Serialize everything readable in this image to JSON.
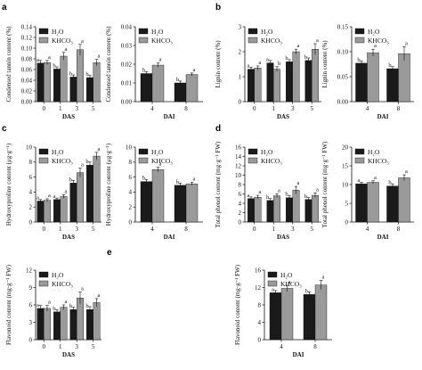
{
  "panel_letters": [
    "a",
    "b",
    "c",
    "d",
    "e"
  ],
  "colors": {
    "h2o": "#1a1a1a",
    "khco3": "#9a9a9a",
    "axis": "#111111"
  },
  "chart_data": [
    {
      "type": "bar",
      "panel": "a",
      "ylabel": "Condensed tannin content (%)",
      "xlabel": "DAS",
      "categories": [
        "0",
        "1",
        "3",
        "5"
      ],
      "ylim": [
        0,
        0.14
      ],
      "yticks": [
        "0.00",
        "0.02",
        "0.04",
        "0.06",
        "0.08",
        "0.10",
        "0.12",
        "0.14"
      ],
      "series": [
        {
          "name": "H₂O",
          "values": [
            0.072,
            0.061,
            0.046,
            0.045
          ],
          "errors": [
            0.005,
            0.004,
            0.004,
            0.004
          ],
          "labels": [
            "a",
            "b",
            "b",
            "b"
          ]
        },
        {
          "name": "KHCO₃",
          "values": [
            0.073,
            0.085,
            0.097,
            0.073
          ],
          "errors": [
            0.004,
            0.007,
            0.01,
            0.006
          ],
          "labels": [
            "a",
            "a",
            "a",
            "a"
          ]
        }
      ]
    },
    {
      "type": "bar",
      "panel": "a",
      "ylabel": "Condensed tannin content (%)",
      "xlabel": "DAI",
      "categories": [
        "4",
        "8"
      ],
      "ylim": [
        0,
        0.04
      ],
      "yticks": [
        "0.00",
        "0.01",
        "0.02",
        "0.03",
        "0.04"
      ],
      "series": [
        {
          "name": "H₂O",
          "values": [
            0.015,
            0.01
          ],
          "errors": [
            0.001,
            0.001
          ],
          "labels": [
            "b",
            "b"
          ]
        },
        {
          "name": "KHCO₃",
          "values": [
            0.0195,
            0.0145
          ],
          "errors": [
            0.0012,
            0.0008
          ],
          "labels": [
            "a",
            "a"
          ]
        }
      ]
    },
    {
      "type": "bar",
      "panel": "b",
      "ylabel": "Lignin content (%)",
      "xlabel": "DAS",
      "categories": [
        "0",
        "1",
        "3",
        "5"
      ],
      "ylim": [
        0,
        3
      ],
      "yticks": [
        "0",
        "1",
        "2",
        "3"
      ],
      "series": [
        {
          "name": "H₂O",
          "values": [
            1.3,
            1.55,
            1.6,
            1.65
          ],
          "errors": [
            0.08,
            0.1,
            0.08,
            0.1
          ],
          "labels": [
            "a",
            "a",
            "b",
            "b"
          ]
        },
        {
          "name": "KHCO₃",
          "values": [
            1.35,
            1.3,
            2.0,
            2.1
          ],
          "errors": [
            0.08,
            0.1,
            0.1,
            0.22
          ],
          "labels": [
            "a",
            "b",
            "a",
            "a"
          ]
        }
      ]
    },
    {
      "type": "bar",
      "panel": "b",
      "ylabel": "Lignin content (%)",
      "xlabel": "DAI",
      "categories": [
        "4",
        "8"
      ],
      "ylim": [
        0,
        0.15
      ],
      "yticks": [
        "0.00",
        "0.05",
        "0.10",
        "0.15"
      ],
      "series": [
        {
          "name": "H₂O",
          "values": [
            0.077,
            0.066
          ],
          "errors": [
            0.004,
            0.004
          ],
          "labels": [
            "b",
            "b"
          ]
        },
        {
          "name": "KHCO₃",
          "values": [
            0.098,
            0.096
          ],
          "errors": [
            0.007,
            0.014
          ],
          "labels": [
            "a",
            "a"
          ]
        }
      ]
    },
    {
      "type": "bar",
      "panel": "c",
      "ylabel": "Hydroxyproline content (μg·g⁻¹)",
      "xlabel": "DAS",
      "categories": [
        "0",
        "1",
        "3",
        "5"
      ],
      "ylim": [
        0,
        10
      ],
      "yticks": [
        "0",
        "2",
        "4",
        "6",
        "8",
        "10"
      ],
      "series": [
        {
          "name": "H₂O",
          "values": [
            2.8,
            3.0,
            5.2,
            7.6
          ],
          "errors": [
            0.2,
            0.2,
            0.35,
            0.4
          ],
          "labels": [
            "a",
            "a",
            "b",
            "b"
          ]
        },
        {
          "name": "KHCO₃",
          "values": [
            2.9,
            3.4,
            6.6,
            8.8
          ],
          "errors": [
            0.2,
            0.25,
            0.6,
            0.5
          ],
          "labels": [
            "a",
            "a",
            "a",
            "a"
          ]
        }
      ]
    },
    {
      "type": "bar",
      "panel": "c",
      "ylabel": "Hydroxyproline content (μg·g⁻¹)",
      "xlabel": "DAI",
      "categories": [
        "4",
        "8"
      ],
      "ylim": [
        0,
        10
      ],
      "yticks": [
        "0",
        "2",
        "4",
        "6",
        "8",
        "10"
      ],
      "series": [
        {
          "name": "H₂O",
          "values": [
            5.4,
            4.9
          ],
          "errors": [
            0.25,
            0.3
          ],
          "labels": [
            "b",
            "b"
          ]
        },
        {
          "name": "KHCO₃",
          "values": [
            7.0,
            5.1
          ],
          "errors": [
            0.3,
            0.2
          ],
          "labels": [
            "a",
            "a"
          ]
        }
      ]
    },
    {
      "type": "bar",
      "panel": "d",
      "ylabel": "Total phenol content (mg·g⁻¹ FW)",
      "xlabel": "DAS",
      "categories": [
        "0",
        "1",
        "3",
        "5"
      ],
      "ylim": [
        0,
        16
      ],
      "yticks": [
        "0",
        "2",
        "4",
        "6",
        "8",
        "10",
        "12",
        "14",
        "16"
      ],
      "series": [
        {
          "name": "H₂O",
          "values": [
            5.0,
            4.6,
            5.2,
            4.8
          ],
          "errors": [
            0.35,
            0.4,
            0.4,
            0.4
          ],
          "labels": [
            "a",
            "b",
            "b",
            "b"
          ]
        },
        {
          "name": "KHCO₃",
          "values": [
            5.3,
            5.6,
            6.8,
            5.7
          ],
          "errors": [
            0.4,
            0.4,
            0.8,
            0.5
          ],
          "labels": [
            "a",
            "a",
            "a",
            "a"
          ]
        }
      ]
    },
    {
      "type": "bar",
      "panel": "d",
      "ylabel": "Total phenol content (mg·g⁻¹ FW)",
      "xlabel": "DAI",
      "categories": [
        "4",
        "8"
      ],
      "ylim": [
        0,
        20
      ],
      "yticks": [
        "0",
        "5",
        "10",
        "15",
        "20"
      ],
      "series": [
        {
          "name": "H₂O",
          "values": [
            10.2,
            9.6
          ],
          "errors": [
            0.4,
            0.6
          ],
          "labels": [
            "a",
            "b"
          ]
        },
        {
          "name": "KHCO₃",
          "values": [
            10.6,
            11.8
          ],
          "errors": [
            0.4,
            0.8
          ],
          "labels": [
            "a",
            "a"
          ]
        }
      ]
    },
    {
      "type": "bar",
      "panel": "e",
      "ylabel": "Flavonoid content (mg·g⁻¹ FW)",
      "xlabel": "DAS",
      "categories": [
        "0",
        "1",
        "3",
        "5"
      ],
      "ylim": [
        0,
        12
      ],
      "yticks": [
        "0",
        "3",
        "6",
        "9",
        "12"
      ],
      "series": [
        {
          "name": "H₂O",
          "values": [
            5.4,
            4.8,
            5.2,
            5.2
          ],
          "errors": [
            0.5,
            0.4,
            0.4,
            0.5
          ],
          "labels": [
            "a",
            "b",
            "b",
            "b"
          ]
        },
        {
          "name": "KHCO₃",
          "values": [
            5.4,
            5.6,
            7.2,
            6.4
          ],
          "errors": [
            0.5,
            0.4,
            1.0,
            0.7
          ],
          "labels": [
            "a",
            "a",
            "a",
            "a"
          ]
        }
      ]
    },
    {
      "type": "bar",
      "panel": "e",
      "ylabel": "Flavonoid content (mg·g⁻¹ FW)",
      "xlabel": "DAI",
      "categories": [
        "4",
        "8"
      ],
      "ylim": [
        0,
        16
      ],
      "yticks": [
        "0",
        "4",
        "8",
        "12",
        "16"
      ],
      "series": [
        {
          "name": "H₂O",
          "values": [
            10.8,
            10.4
          ],
          "errors": [
            0.5,
            0.6
          ],
          "labels": [
            "a",
            "b"
          ]
        },
        {
          "name": "KHCO₃",
          "values": [
            11.8,
            12.6
          ],
          "errors": [
            0.7,
            1.0
          ],
          "labels": [
            "a",
            "a"
          ]
        }
      ]
    }
  ]
}
